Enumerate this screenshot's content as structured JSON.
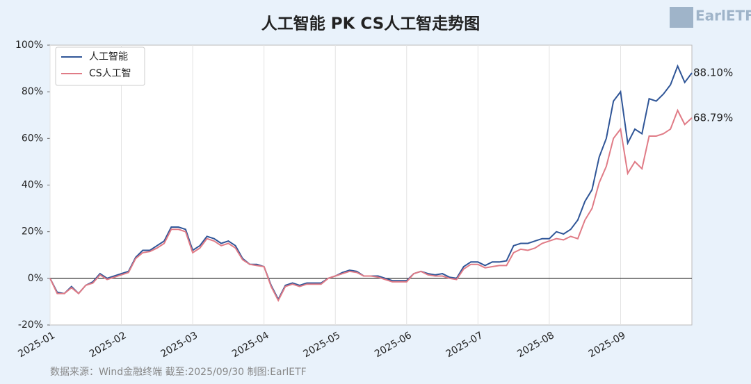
{
  "chart_data": {
    "type": "line",
    "title": "人工智能 PK CS人工智走势图",
    "source": "数据来源：Wind金融终端 截至:2025/09/30 制图:EarlETF",
    "logo": "EarlETF",
    "categories": [
      "2025-01",
      null,
      null,
      null,
      null,
      null,
      null,
      null,
      null,
      null,
      "2025-02",
      null,
      null,
      null,
      null,
      null,
      null,
      null,
      null,
      null,
      "2025-03",
      null,
      null,
      null,
      null,
      null,
      null,
      null,
      null,
      null,
      "2025-04",
      null,
      null,
      null,
      null,
      null,
      null,
      null,
      null,
      null,
      "2025-05",
      null,
      null,
      null,
      null,
      null,
      null,
      null,
      null,
      null,
      "2025-06",
      null,
      null,
      null,
      null,
      null,
      null,
      null,
      null,
      null,
      "2025-07",
      null,
      null,
      null,
      null,
      null,
      null,
      null,
      null,
      null,
      "2025-08",
      null,
      null,
      null,
      null,
      null,
      null,
      null,
      null,
      null,
      "2025-09",
      null,
      null,
      null,
      null,
      null,
      null,
      null,
      null,
      null,
      null
    ],
    "series": [
      {
        "name": "人工智能",
        "color": "#2f5597",
        "values": [
          0,
          -6,
          -6.5,
          -3.5,
          -6.5,
          -3,
          -1.5,
          2,
          0,
          1,
          2,
          3,
          9,
          12,
          12,
          14,
          16,
          22,
          22,
          21,
          12,
          14,
          18,
          17,
          15,
          16,
          14,
          8.5,
          6,
          6,
          5,
          -3,
          -9,
          -3,
          -2,
          -3,
          -2,
          -2,
          -2,
          0,
          1,
          2.5,
          3.5,
          3,
          1,
          1,
          1,
          0,
          -1,
          -1,
          -1,
          2,
          3,
          2,
          1.5,
          2,
          0.5,
          0,
          5,
          7,
          7,
          5.5,
          7,
          7,
          7.5,
          14,
          15,
          15,
          16,
          17,
          17,
          20,
          19,
          21,
          25,
          33,
          38,
          52,
          60,
          76,
          80,
          58,
          64,
          62,
          77,
          76,
          79,
          83,
          91,
          84,
          88.1
        ],
        "value_labels": [
          null,
          null,
          null,
          null,
          null,
          null,
          null,
          null,
          null,
          null,
          null,
          null,
          null,
          null,
          null,
          null,
          null,
          null,
          null,
          null,
          null,
          null,
          null,
          null,
          null,
          null,
          null,
          null,
          null,
          null,
          null,
          null,
          null,
          null,
          null,
          null,
          null,
          null,
          null,
          null,
          null,
          null,
          null,
          null,
          null,
          null,
          null,
          null,
          null,
          null,
          null,
          null,
          null,
          null,
          null,
          null,
          null,
          null,
          null,
          null,
          null,
          null,
          null,
          null,
          null,
          null,
          null,
          null,
          null,
          null,
          null,
          null,
          null,
          null,
          null,
          null,
          null,
          null,
          null,
          null,
          null,
          null,
          null,
          null,
          null,
          null,
          null,
          null,
          null,
          null,
          "88.10%"
        ]
      },
      {
        "name": "CS人工智",
        "color": "#e07b86",
        "values": [
          0,
          -6.5,
          -6.5,
          -4,
          -6.5,
          -3,
          -2,
          1.5,
          -0.5,
          0.5,
          1.5,
          2.5,
          8.5,
          11,
          11.5,
          13,
          15,
          21,
          21,
          20,
          11,
          13,
          17,
          16,
          14,
          15,
          13,
          8,
          6,
          5.5,
          5,
          -3.5,
          -9.5,
          -3.5,
          -2.5,
          -3.5,
          -2.5,
          -2.5,
          -2.5,
          0,
          1,
          2,
          3,
          2.5,
          1,
          1,
          0.5,
          -0.5,
          -1.5,
          -1.5,
          -1.5,
          2,
          3,
          1.5,
          1,
          1,
          0,
          -0.5,
          4,
          6,
          6,
          4.5,
          5,
          5.5,
          5.5,
          11,
          12.5,
          12,
          13,
          15,
          16,
          17,
          16.5,
          18,
          17,
          25,
          30,
          41,
          48,
          60,
          64,
          45,
          50,
          47,
          61,
          61,
          62,
          64,
          72,
          66,
          68.79
        ],
        "value_labels": [
          null,
          null,
          null,
          null,
          null,
          null,
          null,
          null,
          null,
          null,
          null,
          null,
          null,
          null,
          null,
          null,
          null,
          null,
          null,
          null,
          null,
          null,
          null,
          null,
          null,
          null,
          null,
          null,
          null,
          null,
          null,
          null,
          null,
          null,
          null,
          null,
          null,
          null,
          null,
          null,
          null,
          null,
          null,
          null,
          null,
          null,
          null,
          null,
          null,
          null,
          null,
          null,
          null,
          null,
          null,
          null,
          null,
          null,
          null,
          null,
          null,
          null,
          null,
          null,
          null,
          null,
          null,
          null,
          null,
          null,
          null,
          null,
          null,
          null,
          null,
          null,
          null,
          null,
          null,
          null,
          null,
          null,
          null,
          null,
          null,
          null,
          null,
          null,
          null,
          null,
          "68.79%"
        ]
      }
    ],
    "ylim": [
      -20,
      100
    ],
    "yticks": [
      {
        "value": -20,
        "label": "-20%"
      },
      {
        "value": 0,
        "label": "0%"
      },
      {
        "value": 20,
        "label": "20%"
      },
      {
        "value": 40,
        "label": "40%"
      },
      {
        "value": 60,
        "label": "60%"
      },
      {
        "value": 80,
        "label": "80%"
      },
      {
        "value": 100,
        "label": "100%"
      }
    ],
    "grid": "x",
    "zero_line": true,
    "legend": "upper left"
  }
}
